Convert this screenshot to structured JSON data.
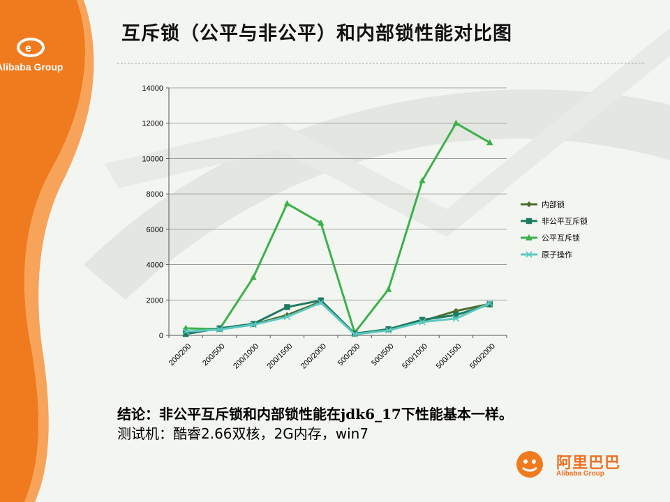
{
  "slide": {
    "title": "互斥锁（公平与非公平）和内部锁性能对比图",
    "conclusion": "结论：非公平互斥锁和内部锁性能在jdk6_17下性能基本一样。",
    "testbed": "测试机：酷睿2.66双核，2G内存，win7"
  },
  "brand": {
    "top_logo_text": "Alibaba Group",
    "bottom_logo_cn": "阿里巴巴",
    "bottom_logo_en": "Alibaba Group",
    "color_orange": "#f07a1e",
    "color_orange_light": "#f7a35a"
  },
  "chart_data": {
    "type": "line",
    "title": "",
    "xlabel": "",
    "ylabel": "",
    "categories": [
      "200/200",
      "200/500",
      "200/1000",
      "200/1500",
      "200/2000",
      "500/200",
      "500/500",
      "500/1000",
      "500/1500",
      "500/2000"
    ],
    "ylim": [
      0,
      14000
    ],
    "yticks": [
      0,
      2000,
      4000,
      6000,
      8000,
      10000,
      12000,
      14000
    ],
    "grid": true,
    "legend_position": "right",
    "series": [
      {
        "name": "内部锁",
        "marker": "diamond",
        "color": "#4b6e2e",
        "values": [
          150,
          380,
          620,
          1150,
          1900,
          80,
          320,
          800,
          1380,
          1780
        ]
      },
      {
        "name": "非公平互斥锁",
        "marker": "square",
        "color": "#1e7a60",
        "values": [
          80,
          400,
          650,
          1600,
          1980,
          100,
          350,
          880,
          1150,
          1750
        ]
      },
      {
        "name": "公平互斥锁",
        "marker": "triangle",
        "color": "#3cb04a",
        "values": [
          400,
          350,
          3280,
          7450,
          6350,
          150,
          2600,
          8750,
          12000,
          10900
        ]
      },
      {
        "name": "原子操作",
        "marker": "x",
        "color": "#5cc8c0",
        "values": [
          220,
          330,
          600,
          1050,
          1850,
          60,
          280,
          760,
          950,
          1820
        ]
      }
    ]
  }
}
